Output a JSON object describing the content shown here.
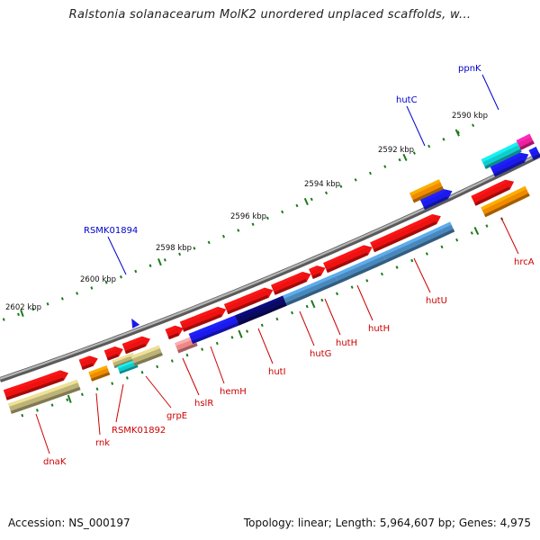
{
  "title": "Ralstonia solanacearum MolK2 unordered unplaced scaffolds, w...",
  "footer": {
    "accession": "Accession: NS_000197",
    "summary": "Topology: linear; Length: 5,964,607 bp; Genes: 4,975"
  },
  "colors": {
    "forward_gene": "#ee1111",
    "olive_gene": "#bdb277",
    "blue_gene": "#1a1aee",
    "steel_gene": "#4a88bb",
    "navy_gene": "#0a0a66",
    "orange_gene": "#f08a00",
    "cyan_gene": "#11cccc",
    "magenta_gene": "#ee2299",
    "pink_gene": "#ee8888",
    "tick": "#1a7a1a",
    "backbone": "#888888",
    "label_red": "#cc0000",
    "label_blue": "#0000cc"
  },
  "scale_labels": [
    "2602 kbp",
    "2600 kbp",
    "2598 kbp",
    "2596 kbp",
    "2594 kbp",
    "2592 kbp",
    "2590 kbp"
  ],
  "gene_labels_top": [
    "RSMK01894",
    "hutC",
    "ppnK"
  ],
  "gene_labels_bottom": [
    "dnaK",
    "rnk",
    "RSMK01892",
    "grpE",
    "hslR",
    "hemH",
    "hutI",
    "hutG",
    "hutH",
    "hutH",
    "hutU",
    "hrcA"
  ]
}
